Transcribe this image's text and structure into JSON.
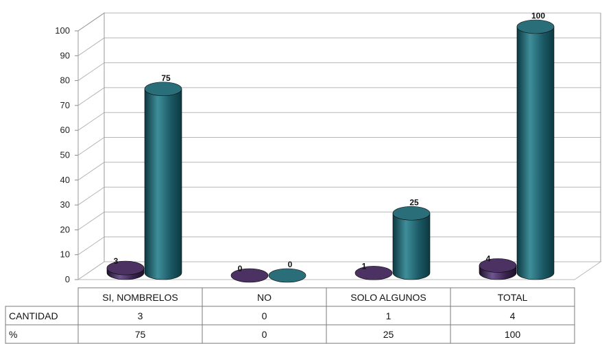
{
  "chart_data": {
    "type": "bar",
    "categories": [
      "SI, NOMBRELOS",
      "NO",
      "SOLO ALGUNOS",
      "TOTAL"
    ],
    "series": [
      {
        "name": "CANTIDAD",
        "values": [
          3,
          0,
          1,
          4
        ],
        "color": "#3b2450"
      },
      {
        "name": "%",
        "values": [
          75,
          0,
          25,
          100
        ],
        "color": "#1b5a66"
      }
    ],
    "title": "",
    "xlabel": "",
    "ylabel": "",
    "ylim": [
      0,
      100
    ],
    "yticks": [
      "0",
      "10",
      "20",
      "30",
      "40",
      "50",
      "60",
      "70",
      "80",
      "90",
      "100"
    ],
    "grid": true,
    "legend": "data table below chart",
    "data_table": {
      "rows": [
        {
          "label": "CANTIDAD",
          "cells": [
            "3",
            "0",
            "1",
            "4"
          ]
        },
        {
          "label": "%",
          "cells": [
            "75",
            "0",
            "25",
            "100"
          ]
        }
      ]
    },
    "data_labels": [
      [
        "3",
        "0",
        "1",
        "4"
      ],
      [
        "75",
        "0",
        "25",
        "100"
      ]
    ]
  }
}
